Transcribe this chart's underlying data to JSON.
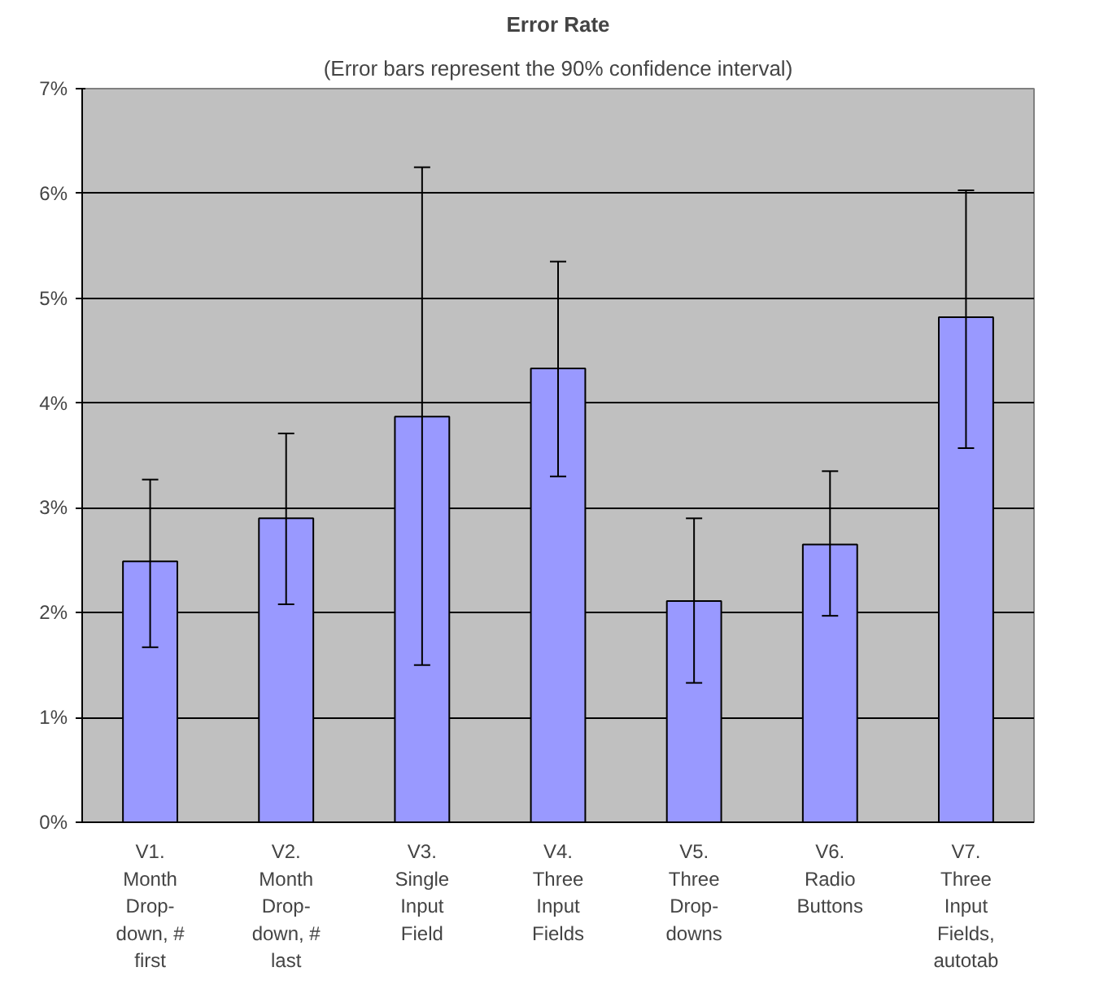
{
  "chart_data": {
    "type": "bar",
    "title": "Error Rate",
    "subtitle": "(Error bars represent the 90% confidence interval)",
    "categories": [
      "V1. Month Drop-down, # first",
      "V2. Month Drop-down, # last",
      "V3. Single Input Field",
      "V4. Three Input Fields",
      "V5. Three Drop-downs",
      "V6. Radio Buttons",
      "V7. Three Input Fields, autotab"
    ],
    "values": [
      2.49,
      2.9,
      3.87,
      4.33,
      2.11,
      2.65,
      4.82
    ],
    "errors": [
      [
        1.67,
        3.27
      ],
      [
        2.08,
        3.71
      ],
      [
        1.5,
        6.25
      ],
      [
        3.3,
        5.35
      ],
      [
        1.33,
        2.9
      ],
      [
        1.97,
        3.35
      ],
      [
        3.57,
        6.03
      ]
    ],
    "color": "#9999ff",
    "ylim": [
      0,
      7
    ],
    "yticks": [
      {
        "value": 0,
        "label": "0%"
      },
      {
        "value": 1,
        "label": "1%"
      },
      {
        "value": 2,
        "label": "2%"
      },
      {
        "value": 3,
        "label": "3%"
      },
      {
        "value": 4,
        "label": "4%"
      },
      {
        "value": 5,
        "label": "5%"
      },
      {
        "value": 6,
        "label": "6%"
      },
      {
        "value": 7,
        "label": "7%"
      }
    ],
    "grid": "y"
  }
}
